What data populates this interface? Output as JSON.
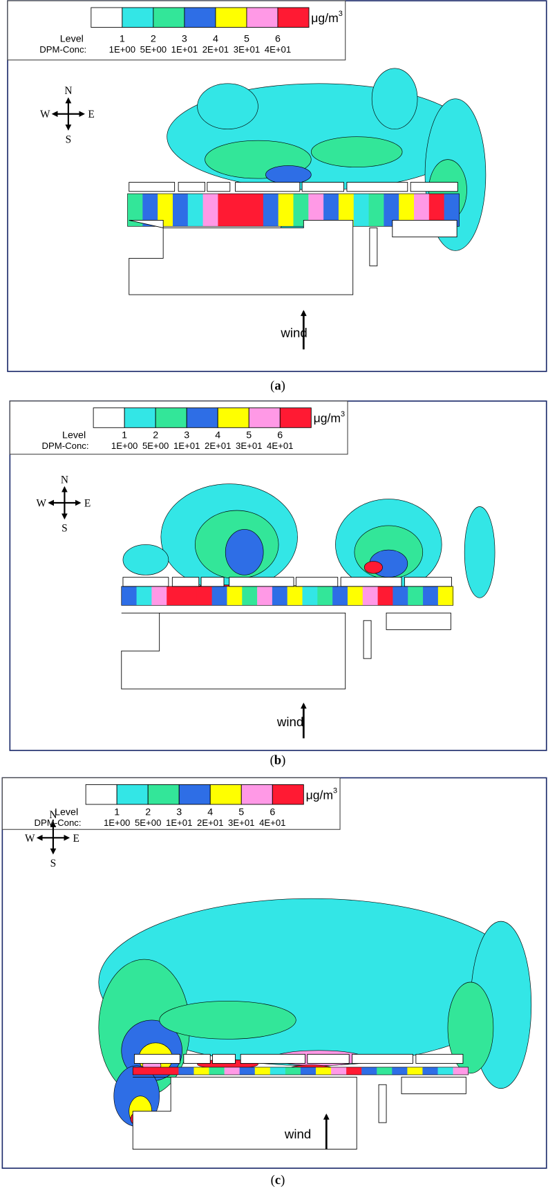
{
  "panels": [
    {
      "legend": {
        "colors": [
          "#ffffff",
          "#33e6e6",
          "#33e699",
          "#2e6ee6",
          "#ffff00",
          "#ff99e6",
          "#ff1a33"
        ],
        "level_label": "Level",
        "levels": [
          "1",
          "2",
          "3",
          "4",
          "5",
          "6"
        ],
        "conc_label": "DPM-Conc:",
        "concentrations": [
          "1E+00",
          "5E+00",
          "1E+01",
          "2E+01",
          "3E+01",
          "4E+01"
        ],
        "unit": "μg/m",
        "unit_exponent": "3"
      },
      "compass": {
        "north": "N",
        "south": "S",
        "west": "W",
        "east": "E"
      },
      "wind_label": "wind",
      "caption": {
        "open": "(",
        "letter": "a",
        "close": ")"
      }
    },
    {
      "legend": {
        "colors": [
          "#ffffff",
          "#33e6e6",
          "#33e699",
          "#2e6ee6",
          "#ffff00",
          "#ff99e6",
          "#ff1a33"
        ],
        "level_label": "Level",
        "levels": [
          "1",
          "2",
          "3",
          "4",
          "5",
          "6"
        ],
        "conc_label": "DPM-Conc:",
        "concentrations": [
          "1E+00",
          "5E+00",
          "1E+01",
          "2E+01",
          "3E+01",
          "4E+01"
        ],
        "unit": "μg/m",
        "unit_exponent": "3"
      },
      "compass": {
        "north": "N",
        "south": "S",
        "west": "W",
        "east": "E"
      },
      "wind_label": "wind",
      "caption": {
        "open": "(",
        "letter": "b",
        "close": ")"
      }
    },
    {
      "legend": {
        "colors": [
          "#ffffff",
          "#33e6e6",
          "#33e699",
          "#2e6ee6",
          "#ffff00",
          "#ff99e6",
          "#ff1a33"
        ],
        "level_label": "Level",
        "levels": [
          "1",
          "2",
          "3",
          "4",
          "5",
          "6"
        ],
        "conc_label": "DPM-Conc:",
        "concentrations": [
          "1E+00",
          "5E+00",
          "1E+01",
          "2E+01",
          "3E+01",
          "4E+01"
        ],
        "unit": "μg/m",
        "unit_exponent": "3"
      },
      "compass": {
        "north": "N",
        "south": "S",
        "west": "W",
        "east": "E"
      },
      "wind_label": "wind",
      "caption": {
        "open": "(",
        "letter": "c",
        "close": ")"
      }
    }
  ]
}
